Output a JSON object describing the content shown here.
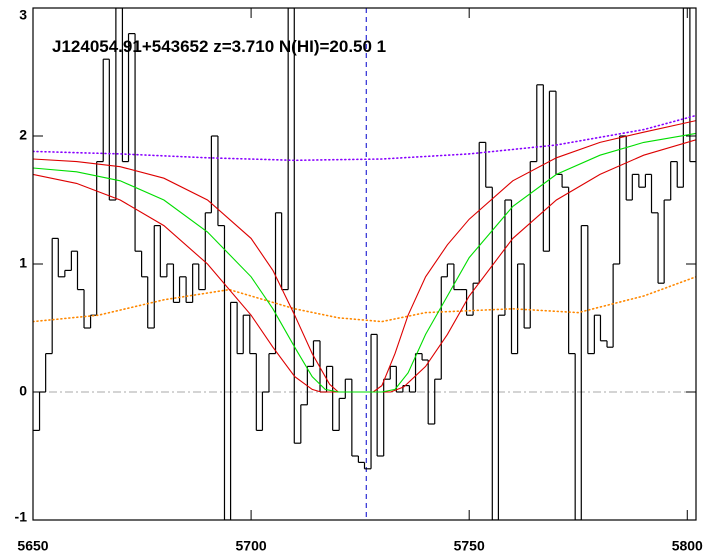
{
  "chart_data": {
    "type": "line",
    "title": "J124054.91+543652 z=3.710 N(HI)=20.50 1",
    "xlim": [
      5650,
      5802
    ],
    "ylim": [
      -1,
      3
    ],
    "xticks": [
      5650,
      5700,
      5750,
      5800
    ],
    "yticks": [
      -1,
      0,
      1,
      2,
      3
    ],
    "hline": {
      "value": 0,
      "color": "#aaaaaa"
    },
    "vline": {
      "value": 5726.4,
      "color": "#0000cc"
    },
    "series": [
      {
        "style": "steps",
        "color": "#000000",
        "bins": [
          5650.0,
          5651.5,
          5652.9,
          5654.4,
          5655.8,
          5657.3,
          5658.8,
          5660.2,
          5661.7,
          5663.2,
          5664.6,
          5666.1,
          5667.5,
          5669.0,
          5670.5,
          5671.9,
          5673.4,
          5674.9,
          5676.3,
          5677.8,
          5679.2,
          5680.7,
          5682.2,
          5683.6,
          5685.1,
          5686.6,
          5688.0,
          5689.5,
          5690.9,
          5692.4,
          5693.9,
          5695.3,
          5696.8,
          5698.2,
          5699.7,
          5701.2,
          5702.6,
          5704.1,
          5705.6,
          5707.0,
          5708.5,
          5709.9,
          5711.4,
          5712.9,
          5714.3,
          5715.8,
          5717.3,
          5718.7,
          5720.2,
          5721.6,
          5723.1,
          5724.6,
          5726.0,
          5727.5,
          5728.9,
          5730.4,
          5731.9,
          5733.3,
          5734.8,
          5736.3,
          5737.7,
          5739.2,
          5740.6,
          5742.1,
          5743.6,
          5745.0,
          5746.5,
          5748.0,
          5749.4,
          5750.9,
          5752.3,
          5753.8,
          5755.3,
          5756.7,
          5758.2,
          5759.7,
          5761.1,
          5762.6,
          5764.0,
          5765.5,
          5767.0,
          5768.4,
          5769.9,
          5771.3,
          5772.8,
          5774.3,
          5775.7,
          5777.2,
          5778.7,
          5780.1,
          5781.6,
          5783.0,
          5784.5,
          5786.0,
          5787.4,
          5788.9,
          5790.4,
          5791.8,
          5793.3,
          5794.7,
          5796.2,
          5797.7,
          5799.1,
          5800.6,
          5802.0
        ],
        "values": [
          -0.3,
          0.0,
          0.3,
          1.2,
          0.9,
          0.95,
          1.1,
          0.8,
          0.5,
          0.6,
          1.8,
          2.6,
          1.5,
          3.0,
          1.8,
          2.8,
          1.1,
          0.9,
          0.5,
          1.3,
          0.9,
          1.0,
          0.7,
          0.9,
          0.7,
          1.0,
          0.8,
          1.4,
          2.0,
          1.3,
          -1.0,
          0.7,
          0.3,
          0.6,
          0.3,
          -0.3,
          0.0,
          0.3,
          1.4,
          0.8,
          3.0,
          -0.4,
          -0.1,
          0.2,
          0.4,
          0.0,
          0.2,
          -0.3,
          -0.05,
          0.1,
          -0.5,
          -0.55,
          -0.6,
          0.45,
          -0.5,
          0.1,
          0.2,
          0.0,
          0.05,
          0.0,
          0.3,
          0.25,
          -0.25,
          0.1,
          0.9,
          1.0,
          0.8,
          0.8,
          0.6,
          0.85,
          1.95,
          1.6,
          -1.0,
          0.6,
          1.5,
          0.3,
          1.0,
          0.5,
          1.8,
          2.4,
          1.1,
          2.35,
          1.7,
          1.6,
          0.3,
          -1.0,
          1.3,
          0.3,
          0.6,
          0.4,
          0.35,
          1.0,
          2.0,
          1.5,
          1.7,
          1.6,
          1.7,
          1.4,
          0.85,
          1.5,
          1.8,
          1.6,
          3.0,
          1.8
        ]
      },
      {
        "style": "dotted",
        "color": "#8800ff",
        "x": [
          5650,
          5670,
          5690,
          5710,
          5730,
          5750,
          5770,
          5790,
          5802
        ],
        "values": [
          1.88,
          1.86,
          1.83,
          1.81,
          1.82,
          1.86,
          1.93,
          2.05,
          2.16
        ]
      },
      {
        "style": "dotted",
        "color": "#ff8800",
        "x": [
          5650,
          5665,
          5680,
          5695,
          5710,
          5720,
          5730,
          5740,
          5760,
          5775,
          5790,
          5802
        ],
        "values": [
          0.55,
          0.6,
          0.72,
          0.8,
          0.65,
          0.58,
          0.55,
          0.62,
          0.65,
          0.62,
          0.75,
          0.9
        ]
      },
      {
        "style": "solid",
        "color": "#dd0000",
        "x": [
          5650,
          5660,
          5670,
          5680,
          5690,
          5700,
          5705,
          5710,
          5714,
          5718,
          5720,
          5728,
          5730,
          5733,
          5736,
          5740,
          5745,
          5750,
          5760,
          5770,
          5780,
          5790,
          5802
        ],
        "values": [
          1.82,
          1.8,
          1.76,
          1.67,
          1.5,
          1.2,
          0.95,
          0.6,
          0.3,
          0.06,
          0,
          0,
          0.05,
          0.3,
          0.6,
          0.9,
          1.15,
          1.35,
          1.65,
          1.83,
          1.95,
          2.03,
          2.12
        ]
      },
      {
        "style": "solid",
        "color": "#dd0000",
        "x": [
          5650,
          5660,
          5670,
          5680,
          5690,
          5700,
          5705,
          5710,
          5714,
          5716,
          5732,
          5735,
          5740,
          5745,
          5750,
          5760,
          5770,
          5780,
          5790,
          5802
        ],
        "values": [
          1.7,
          1.63,
          1.5,
          1.3,
          1.0,
          0.6,
          0.35,
          0.12,
          0.02,
          0,
          0,
          0.04,
          0.2,
          0.45,
          0.75,
          1.2,
          1.5,
          1.7,
          1.85,
          1.97
        ]
      },
      {
        "style": "solid",
        "color": "#00dd00",
        "x": [
          5650,
          5660,
          5670,
          5680,
          5690,
          5700,
          5705,
          5710,
          5714,
          5717,
          5720,
          5730,
          5733,
          5736,
          5740,
          5745,
          5750,
          5760,
          5770,
          5780,
          5790,
          5802
        ],
        "values": [
          1.75,
          1.72,
          1.65,
          1.5,
          1.25,
          0.9,
          0.65,
          0.35,
          0.12,
          0.02,
          0,
          0,
          0.02,
          0.15,
          0.45,
          0.75,
          1.05,
          1.45,
          1.7,
          1.85,
          1.95,
          2.02
        ]
      }
    ]
  }
}
